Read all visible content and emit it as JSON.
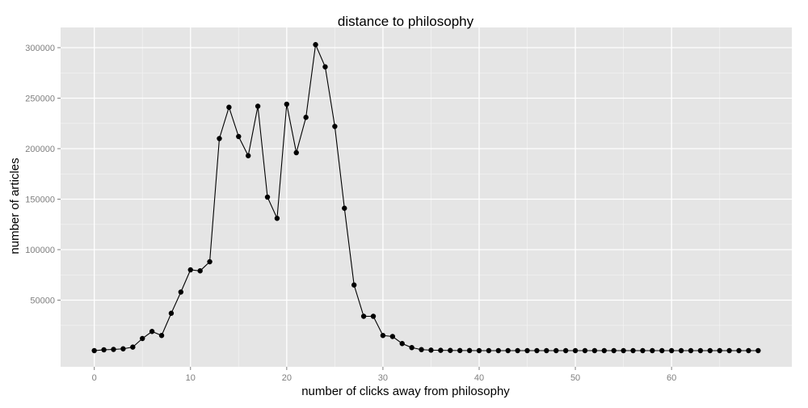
{
  "chart_data": {
    "type": "line",
    "title": "distance to philosophy",
    "xlabel": "number of clicks away from philosophy",
    "ylabel": "number of articles",
    "xlim": [
      -3.5,
      72.5
    ],
    "ylim": [
      -16000,
      320000
    ],
    "x_ticks": [
      0,
      10,
      20,
      30,
      40,
      50,
      60
    ],
    "x_tick_labels": [
      "0",
      "10",
      "20",
      "30",
      "40",
      "50",
      "60"
    ],
    "y_ticks": [
      50000,
      100000,
      150000,
      200000,
      250000,
      300000
    ],
    "y_tick_labels": [
      "50000",
      "100000",
      "150000",
      "200000",
      "250000",
      "300000"
    ],
    "grid": true,
    "colors": {
      "panel": "#e5e5e5",
      "grid_major": "#ffffff",
      "grid_minor": "#f2f2f2",
      "line": "#000000",
      "point": "#000000"
    },
    "series": [
      {
        "x": [
          0,
          1,
          2,
          3,
          4,
          5,
          6,
          7,
          8,
          9,
          10,
          11,
          12,
          13,
          14,
          15,
          16,
          17,
          18,
          19,
          20,
          21,
          22,
          23,
          24,
          25,
          26,
          27,
          28,
          29,
          30,
          31,
          32,
          33,
          34,
          35,
          36,
          37,
          38,
          39,
          40,
          41,
          42,
          43,
          44,
          45,
          46,
          47,
          48,
          49,
          50,
          51,
          52,
          53,
          54,
          55,
          56,
          57,
          58,
          59,
          60,
          61,
          62,
          63,
          64,
          65,
          66,
          67,
          68,
          69
        ],
        "values": [
          0,
          800,
          1200,
          1800,
          3500,
          12000,
          19000,
          15000,
          37000,
          58000,
          80000,
          79000,
          88000,
          210000,
          241000,
          212000,
          193000,
          242000,
          152000,
          131000,
          244000,
          196000,
          231000,
          303000,
          281000,
          222000,
          141000,
          65000,
          34000,
          34000,
          15000,
          14000,
          7000,
          3000,
          1000,
          500,
          300,
          200,
          100,
          100,
          0,
          0,
          0,
          0,
          0,
          0,
          0,
          0,
          0,
          0,
          0,
          0,
          0,
          0,
          0,
          0,
          0,
          0,
          0,
          0,
          0,
          0,
          0,
          0,
          0,
          0,
          0,
          0,
          0,
          0
        ]
      }
    ]
  }
}
